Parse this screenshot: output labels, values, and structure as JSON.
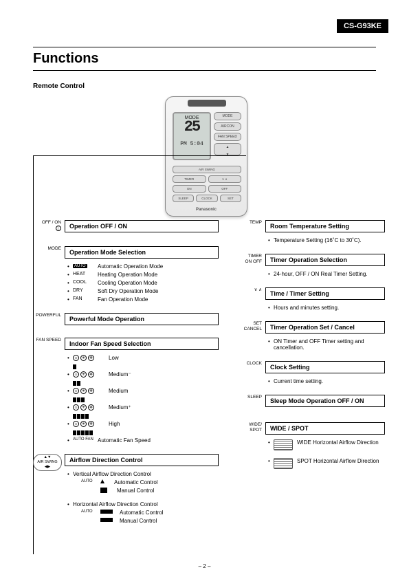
{
  "model": "CS-G93KE",
  "page_title": "Functions",
  "subtitle": "Remote Control",
  "remote": {
    "lcd_mode": "MODE",
    "lcd_temp": "25",
    "lcd_time": "5:04",
    "lcd_pm": "PM",
    "brand": "Panasonic",
    "buttons": {
      "mode": "MODE",
      "aircon": "AIRCON",
      "fanspeed": "FAN SPEED",
      "temp_up": "▲",
      "temp_dn": "▼",
      "airswing": "AIR SWING",
      "timer": "TIMER",
      "on": "ON",
      "off": "OFF",
      "sleep": "SLEEP",
      "clock": "CLOCK",
      "set": "SET"
    }
  },
  "left": {
    "offon": {
      "label": "OFF / ON",
      "header": "Operation OFF / ON"
    },
    "mode": {
      "label": "MODE",
      "header": "Operation Mode Selection",
      "items": [
        {
          "icon": "AUTO",
          "icon_style": "box",
          "text": "Automatic Operation Mode"
        },
        {
          "icon": "HEAT",
          "text": "Heating Operation Mode"
        },
        {
          "icon": "COOL",
          "text": "Cooling Operation Mode"
        },
        {
          "icon": "DRY",
          "text": "Soft Dry Operation Mode"
        },
        {
          "icon": "FAN",
          "text": "Fan Operation Mode"
        }
      ]
    },
    "powerful": {
      "label": "POWERFUL",
      "header": "Powerful Mode Operation"
    },
    "fanspeed": {
      "label": "FAN SPEED",
      "header": "Indoor Fan Speed Selection",
      "items": [
        {
          "bars": 1,
          "text": "Low"
        },
        {
          "bars": 2,
          "text": "Medium⁻"
        },
        {
          "bars": 3,
          "text": "Medium"
        },
        {
          "bars": 4,
          "text": "Medium⁺"
        },
        {
          "bars": 5,
          "text": "High"
        },
        {
          "autofan": true,
          "text": "Automatic Fan Speed"
        }
      ]
    },
    "airflow": {
      "label": "AIR SWING",
      "header": "Airflow Direction Control",
      "vertical": "Vertical Airflow Direction Control",
      "horizontal": "Horizontal Airflow Direction Control",
      "auto": "Automatic Control",
      "manual": "Manual Control",
      "auto_tag": "AUTO"
    }
  },
  "right": {
    "temp": {
      "label": "TEMP",
      "header": "Room Temperature Setting",
      "body": "Temperature Setting (16˚C to 30˚C)."
    },
    "timer_onoff": {
      "label": "TIMER ON OFF",
      "header": "Timer Operation Selection",
      "body": "24-hour, OFF / ON Real Timer Setting."
    },
    "timetimer": {
      "label": "∨ ∧",
      "header": "Time / Timer Setting",
      "body": "Hours and minutes setting."
    },
    "setcancel": {
      "label": "SET CANCEL",
      "header": "Timer Operation Set / Cancel",
      "body": "ON Timer and OFF Timer setting and cancellation."
    },
    "clock": {
      "label": "CLOCK",
      "header": "Clock Setting",
      "body": "Current time setting."
    },
    "sleep": {
      "label": "SLEEP",
      "header": "Sleep Mode Operation OFF / ON"
    },
    "widespot": {
      "label": "WIDE/ SPOT",
      "header": "WIDE / SPOT",
      "items": [
        {
          "text": "WIDE Horizontal Airflow Direction"
        },
        {
          "text": "SPOT Horizontal Airflow Direction"
        }
      ]
    }
  },
  "page_number": "– 2  –"
}
